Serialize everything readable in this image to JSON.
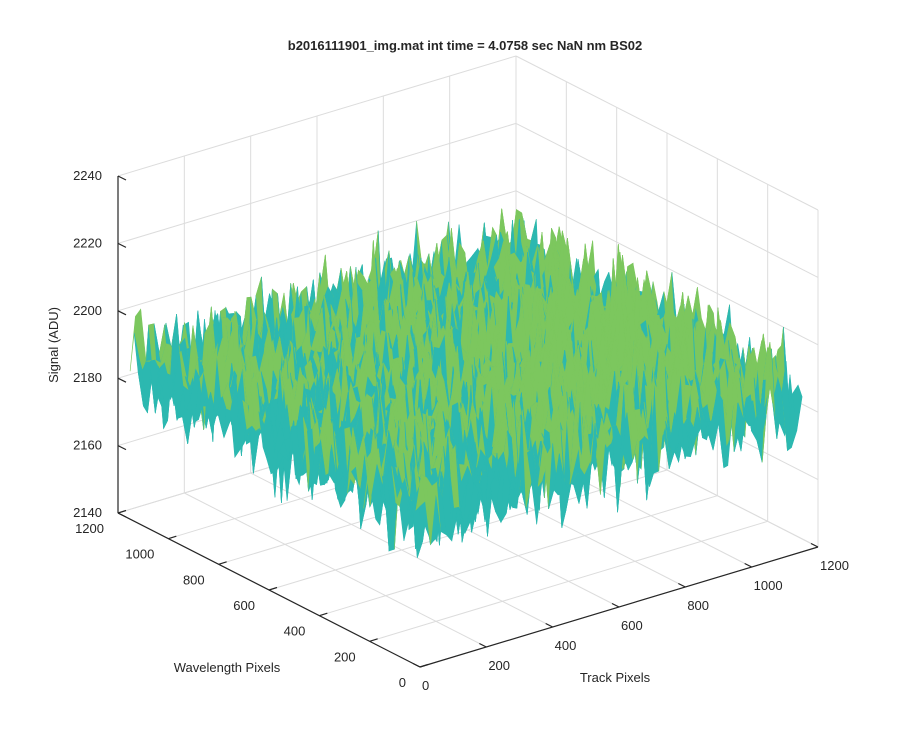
{
  "chart_data": {
    "type": "surface",
    "title": "b2016111901_img.mat int time = 4.0758 sec  NaN nm BS02",
    "xlabel": "Track Pixels",
    "ylabel": "Wavelength Pixels",
    "zlabel": "Signal (ADU)",
    "xlim": [
      0,
      1200
    ],
    "ylim": [
      0,
      1200
    ],
    "zlim": [
      2140,
      2240
    ],
    "xticks": [
      "0",
      "200",
      "400",
      "600",
      "800",
      "1000",
      "1200"
    ],
    "yticks": [
      "0",
      "200",
      "400",
      "600",
      "800",
      "1000",
      "1200"
    ],
    "zticks": [
      "2140",
      "2160",
      "2180",
      "2200",
      "2220",
      "2240"
    ],
    "data_extent": {
      "track_pixels": [
        0,
        1152
      ],
      "wavelength_pixels": [
        0,
        1152
      ]
    },
    "signal_mean_approx": 2185,
    "signal_range_approx": [
      2145,
      2230
    ],
    "colormap": [
      "#0072bd",
      "#1e9ad6",
      "#2cb8b0",
      "#7cc75e",
      "#d8c24a",
      "#f2b93a"
    ],
    "grid": true
  }
}
